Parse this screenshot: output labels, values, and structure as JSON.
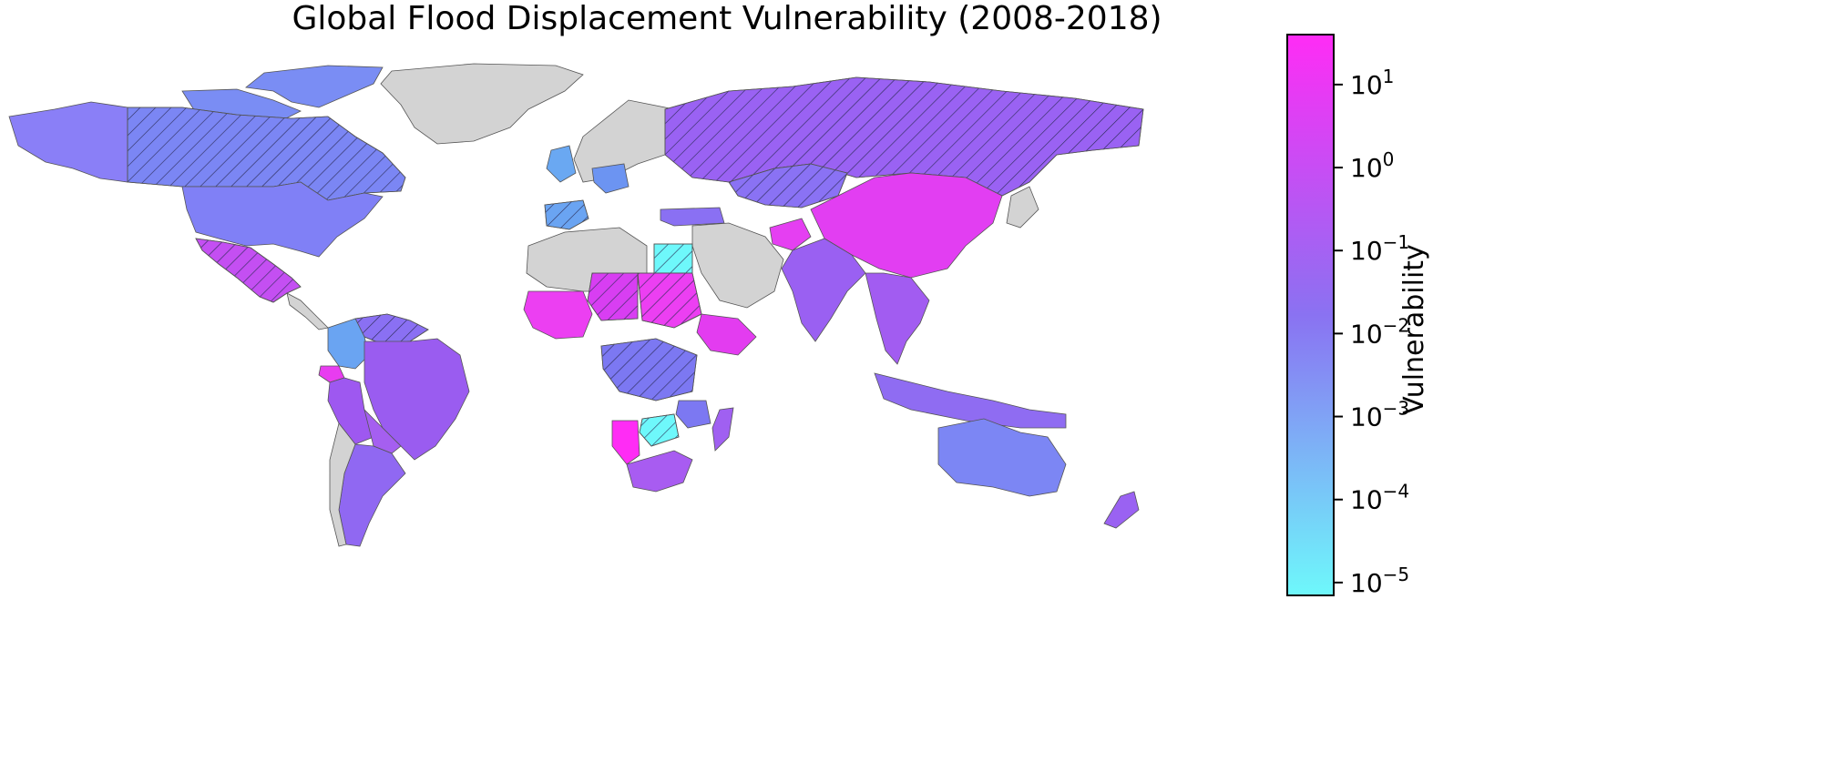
{
  "chart": {
    "title": "Global Flood Displacement Vulnerability (2008-2018)",
    "colorbar": {
      "label": "Vulnerability",
      "scale": "log",
      "range": [
        7e-06,
        40
      ],
      "gradient": [
        {
          "stop": 0.0,
          "color": "#6ef8fb"
        },
        {
          "stop": 0.5,
          "color": "#8a72f2"
        },
        {
          "stop": 1.0,
          "color": "#ff2cf5"
        }
      ],
      "ticks": [
        {
          "base": "10",
          "exp": "1",
          "value": 10
        },
        {
          "base": "10",
          "exp": "0",
          "value": 1
        },
        {
          "base": "10",
          "exp": "−1",
          "value": 0.1
        },
        {
          "base": "10",
          "exp": "−2",
          "value": 0.01
        },
        {
          "base": "10",
          "exp": "−3",
          "value": 0.001
        },
        {
          "base": "10",
          "exp": "−4",
          "value": 0.0001
        },
        {
          "base": "10",
          "exp": "−5",
          "value": 1e-05
        }
      ]
    },
    "no_data_color": "#d3d3d3",
    "regions": [
      {
        "name": "Alaska",
        "color": "#8a7ff7",
        "hatched": false
      },
      {
        "name": "Canada",
        "color": "#7b86f4",
        "hatched": true
      },
      {
        "name": "Canadian Arctic Islands",
        "color": "#7a8df4",
        "hatched": false
      },
      {
        "name": "Greenland",
        "color": "#d3d3d3",
        "hatched": false
      },
      {
        "name": "United States",
        "color": "#8080f6",
        "hatched": false
      },
      {
        "name": "Mexico",
        "color": "#c44ff2",
        "hatched": true
      },
      {
        "name": "Colombia",
        "color": "#6aa4f2",
        "hatched": false
      },
      {
        "name": "Venezuela",
        "color": "#8a70f3",
        "hatched": true
      },
      {
        "name": "Brazil",
        "color": "#9a5cf0",
        "hatched": false
      },
      {
        "name": "Peru",
        "color": "#9e58f0",
        "hatched": false
      },
      {
        "name": "Ecuador",
        "color": "#e83cf0",
        "hatched": false
      },
      {
        "name": "Bolivia",
        "color": "#a55ff0",
        "hatched": false
      },
      {
        "name": "Argentina",
        "color": "#9068f2",
        "hatched": false
      },
      {
        "name": "Chile",
        "color": "#d3d3d3",
        "hatched": false
      },
      {
        "name": "Russia",
        "color": "#9a62f3",
        "hatched": true
      },
      {
        "name": "China",
        "color": "#e23ef2",
        "hatched": false
      },
      {
        "name": "Kazakhstan",
        "color": "#8a72f4",
        "hatched": true
      },
      {
        "name": "India",
        "color": "#9a60f2",
        "hatched": false
      },
      {
        "name": "Afghanistan",
        "color": "#e53ff2",
        "hatched": false
      },
      {
        "name": "Middle East",
        "color": "#d3d3d3",
        "hatched": false
      },
      {
        "name": "Southeast Asia",
        "color": "#a25cf1",
        "hatched": false
      },
      {
        "name": "Indonesia",
        "color": "#8f6cf2",
        "hatched": false
      },
      {
        "name": "Australia",
        "color": "#7c86f4",
        "hatched": false
      },
      {
        "name": "New Zealand",
        "color": "#9a62f2",
        "hatched": false
      },
      {
        "name": "Japan",
        "color": "#d3d3d3",
        "hatched": false
      },
      {
        "name": "Sudan",
        "color": "#ec3ff2",
        "hatched": true
      },
      {
        "name": "Egypt",
        "color": "#6ef8fb",
        "hatched": true
      },
      {
        "name": "Libya / Algeria",
        "color": "#d3d3d3",
        "hatched": false
      },
      {
        "name": "Chad",
        "color": "#d83ef2",
        "hatched": true
      },
      {
        "name": "Ethiopia",
        "color": "#e33cf0",
        "hatched": false
      },
      {
        "name": "DR Congo",
        "color": "#7c78f2",
        "hatched": true
      },
      {
        "name": "Zambia",
        "color": "#6ef8fb",
        "hatched": true
      },
      {
        "name": "Namibia",
        "color": "#ff2cf5",
        "hatched": false
      },
      {
        "name": "South Africa",
        "color": "#a85cf1",
        "hatched": false
      },
      {
        "name": "Madagascar",
        "color": "#a060f1",
        "hatched": false
      },
      {
        "name": "Europe North",
        "color": "#d3d3d3",
        "hatched": false
      },
      {
        "name": "Spain",
        "color": "#6aa4f2",
        "hatched": true
      },
      {
        "name": "United Kingdom",
        "color": "#6aa8f2",
        "hatched": false
      },
      {
        "name": "Germany",
        "color": "#6c94f2",
        "hatched": false
      },
      {
        "name": "Turkey",
        "color": "#8a70f3",
        "hatched": false
      }
    ]
  }
}
